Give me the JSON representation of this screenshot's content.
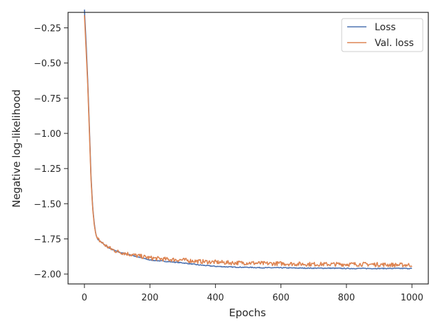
{
  "chart_data": {
    "type": "line",
    "title": "",
    "xlabel": "Epochs",
    "ylabel": "Negative log-likelihood",
    "xlim": [
      -50,
      1050
    ],
    "ylim": [
      -2.07,
      -0.14
    ],
    "x_ticks": [
      0,
      200,
      400,
      600,
      800,
      1000
    ],
    "x_tick_labels": [
      "0",
      "200",
      "400",
      "600",
      "800",
      "1000"
    ],
    "y_ticks": [
      -0.25,
      -0.5,
      -0.75,
      -1.0,
      -1.25,
      -1.5,
      -1.75,
      -2.0
    ],
    "y_tick_labels": [
      "−0.25",
      "−0.50",
      "−0.75",
      "−1.00",
      "−1.25",
      "−1.50",
      "−1.75",
      "−2.00"
    ],
    "grid": false,
    "legend": {
      "position": "top-right"
    },
    "series": [
      {
        "name": "Loss",
        "color": "#4c72b0",
        "x": [
          0,
          5,
          10,
          15,
          20,
          25,
          30,
          35,
          40,
          50,
          60,
          80,
          100,
          150,
          200,
          250,
          300,
          350,
          400,
          450,
          500,
          550,
          600,
          650,
          700,
          750,
          800,
          850,
          900,
          950,
          1000
        ],
        "y": [
          -0.12,
          -0.35,
          -0.62,
          -0.95,
          -1.3,
          -1.52,
          -1.64,
          -1.72,
          -1.75,
          -1.77,
          -1.79,
          -1.82,
          -1.84,
          -1.87,
          -1.9,
          -1.91,
          -1.92,
          -1.935,
          -1.945,
          -1.95,
          -1.952,
          -1.955,
          -1.955,
          -1.957,
          -1.958,
          -1.958,
          -1.96,
          -1.96,
          -1.96,
          -1.96,
          -1.96
        ]
      },
      {
        "name": "Val. loss",
        "color": "#dd8452",
        "x": [
          0,
          5,
          10,
          15,
          20,
          25,
          30,
          35,
          40,
          50,
          60,
          80,
          100,
          150,
          200,
          250,
          300,
          350,
          400,
          450,
          500,
          550,
          600,
          650,
          700,
          750,
          800,
          850,
          900,
          950,
          1000
        ],
        "y": [
          -0.16,
          -0.4,
          -0.65,
          -0.98,
          -1.32,
          -1.53,
          -1.65,
          -1.72,
          -1.75,
          -1.77,
          -1.79,
          -1.82,
          -1.84,
          -1.865,
          -1.885,
          -1.895,
          -1.9,
          -1.91,
          -1.915,
          -1.92,
          -1.92,
          -1.925,
          -1.925,
          -1.928,
          -1.93,
          -1.93,
          -1.93,
          -1.93,
          -1.932,
          -1.935,
          -1.935
        ],
        "noise": 0.015
      }
    ]
  }
}
